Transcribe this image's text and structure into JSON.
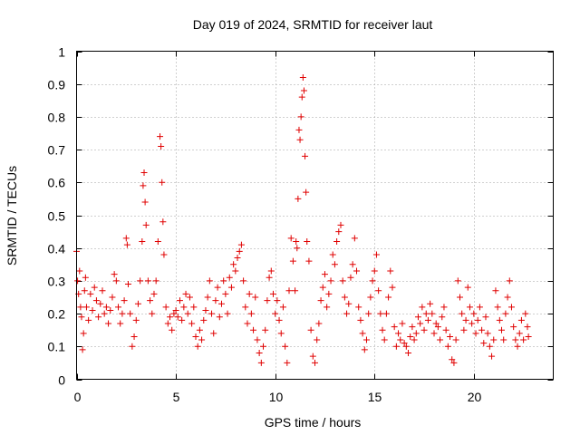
{
  "chart_data": {
    "type": "scatter",
    "title": "Day 019 of 2024, SRMTID for receiver laut",
    "xlabel": "GPS time / hours",
    "ylabel": "SRMTID / TECUs",
    "xlim": [
      0,
      24
    ],
    "ylim": [
      0,
      1
    ],
    "xticks": [
      0,
      5,
      10,
      15,
      20
    ],
    "xtick_labels": [
      "0",
      "5",
      "10",
      "15",
      "20"
    ],
    "yticks": [
      0,
      0.1,
      0.2,
      0.3,
      0.4,
      0.5,
      0.6,
      0.7,
      0.8,
      0.9,
      1
    ],
    "ytick_labels": [
      "0",
      "0.1",
      "0.2",
      "0.3",
      "0.4",
      "0.5",
      "0.6",
      "0.7",
      "0.8",
      "0.9",
      "1"
    ],
    "grid": true,
    "marker": "+",
    "color": "#e00000",
    "series": [
      {
        "name": "SRMTID",
        "points": [
          [
            0.0,
            0.39
          ],
          [
            0.05,
            0.3
          ],
          [
            0.1,
            0.26
          ],
          [
            0.15,
            0.33
          ],
          [
            0.2,
            0.22
          ],
          [
            0.25,
            0.19
          ],
          [
            0.3,
            0.09
          ],
          [
            0.35,
            0.14
          ],
          [
            0.4,
            0.27
          ],
          [
            0.45,
            0.31
          ],
          [
            0.5,
            0.22
          ],
          [
            0.6,
            0.18
          ],
          [
            0.7,
            0.26
          ],
          [
            0.8,
            0.21
          ],
          [
            0.9,
            0.28
          ],
          [
            1.0,
            0.24
          ],
          [
            1.1,
            0.19
          ],
          [
            1.2,
            0.23
          ],
          [
            1.3,
            0.27
          ],
          [
            1.4,
            0.2
          ],
          [
            1.5,
            0.22
          ],
          [
            1.6,
            0.17
          ],
          [
            1.7,
            0.21
          ],
          [
            1.8,
            0.25
          ],
          [
            1.9,
            0.32
          ],
          [
            2.0,
            0.3
          ],
          [
            2.1,
            0.22
          ],
          [
            2.2,
            0.17
          ],
          [
            2.3,
            0.2
          ],
          [
            2.4,
            0.24
          ],
          [
            2.5,
            0.43
          ],
          [
            2.55,
            0.41
          ],
          [
            2.6,
            0.29
          ],
          [
            2.7,
            0.2
          ],
          [
            2.8,
            0.1
          ],
          [
            2.9,
            0.13
          ],
          [
            3.0,
            0.18
          ],
          [
            3.1,
            0.23
          ],
          [
            3.2,
            0.3
          ],
          [
            3.3,
            0.42
          ],
          [
            3.35,
            0.59
          ],
          [
            3.4,
            0.63
          ],
          [
            3.45,
            0.54
          ],
          [
            3.5,
            0.47
          ],
          [
            3.6,
            0.3
          ],
          [
            3.7,
            0.24
          ],
          [
            3.8,
            0.2
          ],
          [
            3.9,
            0.26
          ],
          [
            4.0,
            0.3
          ],
          [
            4.1,
            0.42
          ],
          [
            4.2,
            0.74
          ],
          [
            4.25,
            0.71
          ],
          [
            4.3,
            0.6
          ],
          [
            4.35,
            0.48
          ],
          [
            4.4,
            0.38
          ],
          [
            4.5,
            0.22
          ],
          [
            4.6,
            0.17
          ],
          [
            4.7,
            0.19
          ],
          [
            4.8,
            0.15
          ],
          [
            4.9,
            0.2
          ],
          [
            5.0,
            0.21
          ],
          [
            5.1,
            0.19
          ],
          [
            5.2,
            0.24
          ],
          [
            5.3,
            0.18
          ],
          [
            5.4,
            0.22
          ],
          [
            5.5,
            0.26
          ],
          [
            5.6,
            0.2
          ],
          [
            5.7,
            0.25
          ],
          [
            5.8,
            0.17
          ],
          [
            5.9,
            0.22
          ],
          [
            6.0,
            0.13
          ],
          [
            6.1,
            0.1
          ],
          [
            6.2,
            0.15
          ],
          [
            6.3,
            0.12
          ],
          [
            6.4,
            0.18
          ],
          [
            6.5,
            0.21
          ],
          [
            6.6,
            0.25
          ],
          [
            6.7,
            0.3
          ],
          [
            6.8,
            0.2
          ],
          [
            6.9,
            0.14
          ],
          [
            7.0,
            0.24
          ],
          [
            7.1,
            0.28
          ],
          [
            7.2,
            0.19
          ],
          [
            7.3,
            0.23
          ],
          [
            7.4,
            0.3
          ],
          [
            7.5,
            0.26
          ],
          [
            7.6,
            0.2
          ],
          [
            7.7,
            0.31
          ],
          [
            7.8,
            0.28
          ],
          [
            7.9,
            0.35
          ],
          [
            8.0,
            0.33
          ],
          [
            8.1,
            0.37
          ],
          [
            8.2,
            0.39
          ],
          [
            8.3,
            0.41
          ],
          [
            8.4,
            0.3
          ],
          [
            8.5,
            0.22
          ],
          [
            8.6,
            0.17
          ],
          [
            8.7,
            0.26
          ],
          [
            8.8,
            0.2
          ],
          [
            8.9,
            0.15
          ],
          [
            9.0,
            0.25
          ],
          [
            9.1,
            0.12
          ],
          [
            9.2,
            0.08
          ],
          [
            9.3,
            0.05
          ],
          [
            9.4,
            0.1
          ],
          [
            9.5,
            0.15
          ],
          [
            9.6,
            0.24
          ],
          [
            9.7,
            0.31
          ],
          [
            9.8,
            0.33
          ],
          [
            9.9,
            0.26
          ],
          [
            10.0,
            0.2
          ],
          [
            10.1,
            0.24
          ],
          [
            10.2,
            0.18
          ],
          [
            10.3,
            0.14
          ],
          [
            10.4,
            0.22
          ],
          [
            10.5,
            0.1
          ],
          [
            10.6,
            0.05
          ],
          [
            10.7,
            0.27
          ],
          [
            10.8,
            0.43
          ],
          [
            10.9,
            0.36
          ],
          [
            11.0,
            0.27
          ],
          [
            11.05,
            0.42
          ],
          [
            11.1,
            0.4
          ],
          [
            11.15,
            0.55
          ],
          [
            11.2,
            0.76
          ],
          [
            11.25,
            0.73
          ],
          [
            11.3,
            0.8
          ],
          [
            11.35,
            0.86
          ],
          [
            11.4,
            0.92
          ],
          [
            11.45,
            0.88
          ],
          [
            11.5,
            0.68
          ],
          [
            11.55,
            0.57
          ],
          [
            11.6,
            0.42
          ],
          [
            11.7,
            0.36
          ],
          [
            11.8,
            0.15
          ],
          [
            11.9,
            0.07
          ],
          [
            12.0,
            0.05
          ],
          [
            12.1,
            0.12
          ],
          [
            12.2,
            0.17
          ],
          [
            12.3,
            0.24
          ],
          [
            12.4,
            0.28
          ],
          [
            12.5,
            0.32
          ],
          [
            12.6,
            0.22
          ],
          [
            12.7,
            0.26
          ],
          [
            12.8,
            0.3
          ],
          [
            12.9,
            0.38
          ],
          [
            13.0,
            0.35
          ],
          [
            13.1,
            0.42
          ],
          [
            13.2,
            0.45
          ],
          [
            13.3,
            0.47
          ],
          [
            13.4,
            0.3
          ],
          [
            13.5,
            0.25
          ],
          [
            13.6,
            0.2
          ],
          [
            13.7,
            0.23
          ],
          [
            13.8,
            0.31
          ],
          [
            13.9,
            0.35
          ],
          [
            14.0,
            0.43
          ],
          [
            14.1,
            0.33
          ],
          [
            14.2,
            0.22
          ],
          [
            14.3,
            0.18
          ],
          [
            14.4,
            0.14
          ],
          [
            14.5,
            0.09
          ],
          [
            14.6,
            0.12
          ],
          [
            14.7,
            0.2
          ],
          [
            14.8,
            0.25
          ],
          [
            14.9,
            0.3
          ],
          [
            15.0,
            0.33
          ],
          [
            15.1,
            0.38
          ],
          [
            15.2,
            0.27
          ],
          [
            15.3,
            0.2
          ],
          [
            15.4,
            0.15
          ],
          [
            15.5,
            0.12
          ],
          [
            15.6,
            0.2
          ],
          [
            15.7,
            0.25
          ],
          [
            15.8,
            0.33
          ],
          [
            15.9,
            0.28
          ],
          [
            16.0,
            0.16
          ],
          [
            16.1,
            0.1
          ],
          [
            16.2,
            0.14
          ],
          [
            16.3,
            0.12
          ],
          [
            16.4,
            0.17
          ],
          [
            16.5,
            0.11
          ],
          [
            16.6,
            0.1
          ],
          [
            16.7,
            0.08
          ],
          [
            16.8,
            0.13
          ],
          [
            16.9,
            0.16
          ],
          [
            17.0,
            0.12
          ],
          [
            17.1,
            0.14
          ],
          [
            17.2,
            0.19
          ],
          [
            17.3,
            0.17
          ],
          [
            17.4,
            0.22
          ],
          [
            17.5,
            0.15
          ],
          [
            17.6,
            0.2
          ],
          [
            17.7,
            0.18
          ],
          [
            17.8,
            0.23
          ],
          [
            17.9,
            0.2
          ],
          [
            18.0,
            0.14
          ],
          [
            18.1,
            0.17
          ],
          [
            18.2,
            0.16
          ],
          [
            18.3,
            0.12
          ],
          [
            18.4,
            0.19
          ],
          [
            18.5,
            0.22
          ],
          [
            18.6,
            0.15
          ],
          [
            18.7,
            0.1
          ],
          [
            18.8,
            0.13
          ],
          [
            18.9,
            0.06
          ],
          [
            19.0,
            0.05
          ],
          [
            19.1,
            0.12
          ],
          [
            19.2,
            0.3
          ],
          [
            19.3,
            0.25
          ],
          [
            19.4,
            0.2
          ],
          [
            19.5,
            0.15
          ],
          [
            19.6,
            0.18
          ],
          [
            19.7,
            0.28
          ],
          [
            19.8,
            0.22
          ],
          [
            19.9,
            0.17
          ],
          [
            20.0,
            0.2
          ],
          [
            20.1,
            0.14
          ],
          [
            20.2,
            0.18
          ],
          [
            20.3,
            0.22
          ],
          [
            20.4,
            0.15
          ],
          [
            20.5,
            0.11
          ],
          [
            20.6,
            0.19
          ],
          [
            20.7,
            0.14
          ],
          [
            20.8,
            0.1
          ],
          [
            20.9,
            0.07
          ],
          [
            21.0,
            0.12
          ],
          [
            21.1,
            0.27
          ],
          [
            21.2,
            0.22
          ],
          [
            21.3,
            0.18
          ],
          [
            21.4,
            0.15
          ],
          [
            21.5,
            0.12
          ],
          [
            21.6,
            0.2
          ],
          [
            21.7,
            0.25
          ],
          [
            21.8,
            0.3
          ],
          [
            21.9,
            0.22
          ],
          [
            22.0,
            0.16
          ],
          [
            22.1,
            0.12
          ],
          [
            22.2,
            0.1
          ],
          [
            22.3,
            0.14
          ],
          [
            22.4,
            0.18
          ],
          [
            22.5,
            0.12
          ],
          [
            22.6,
            0.2
          ],
          [
            22.7,
            0.16
          ],
          [
            22.75,
            0.13
          ]
        ]
      }
    ]
  }
}
